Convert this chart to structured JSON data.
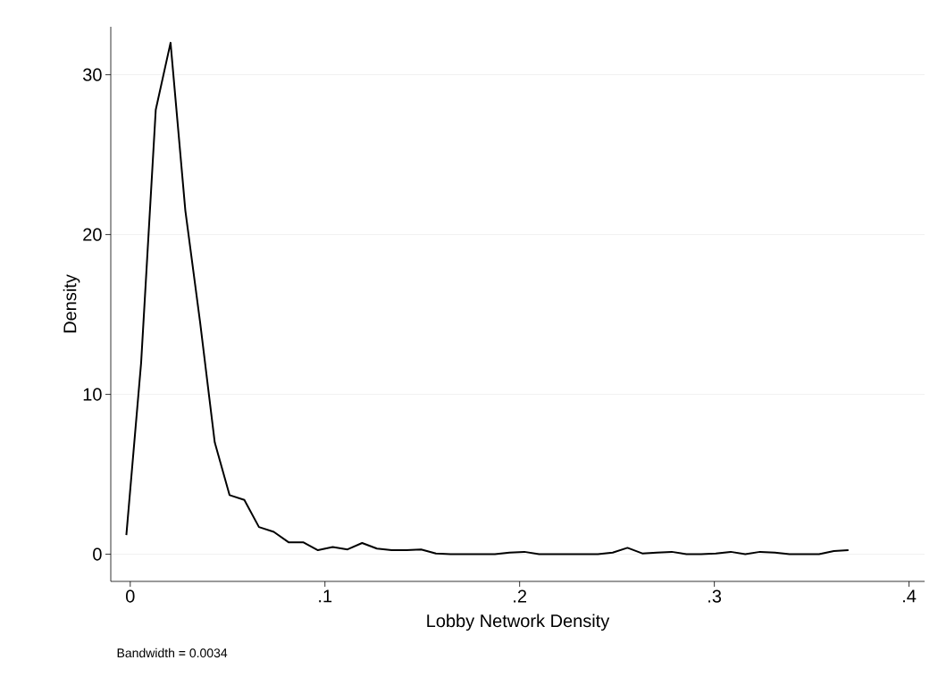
{
  "chart_data": {
    "type": "line",
    "xlabel": "Lobby Network Density",
    "ylabel": "Density",
    "annotations": [
      "Bandwidth = 0.0034"
    ],
    "series": [
      {
        "color": "#000000",
        "x": [
          -0.002,
          0.0056,
          0.0131,
          0.0207,
          0.0283,
          0.0359,
          0.0434,
          0.051,
          0.0586,
          0.0661,
          0.0737,
          0.0813,
          0.0888,
          0.0964,
          0.104,
          0.1116,
          0.1191,
          0.1267,
          0.1343,
          0.1418,
          0.1494,
          0.157,
          0.1645,
          0.1721,
          0.1797,
          0.1873,
          0.1948,
          0.2024,
          0.21,
          0.2175,
          0.2251,
          0.2327,
          0.2402,
          0.2478,
          0.2554,
          0.263,
          0.2705,
          0.2781,
          0.2857,
          0.2932,
          0.3008,
          0.3084,
          0.3159,
          0.3235,
          0.3311,
          0.3386,
          0.3462,
          0.3538,
          0.3614,
          0.3689
        ],
        "values": [
          1.2,
          12,
          27.8,
          32,
          21.5,
          14.5,
          7,
          3.7,
          3.4,
          1.7,
          1.4,
          0.75,
          0.75,
          0.25,
          0.45,
          0.3,
          0.7,
          0.35,
          0.25,
          0.25,
          0.3,
          0.05,
          0,
          0,
          0,
          0,
          0.1,
          0.15,
          0,
          0,
          0,
          0,
          0,
          0.1,
          0.4,
          0.05,
          0.1,
          0.15,
          0,
          0,
          0.05,
          0.15,
          0,
          0.15,
          0.1,
          0,
          0,
          0,
          0.2,
          0.25
        ]
      }
    ],
    "xlim": [
      -0.01,
      0.408
    ],
    "ylim": [
      -1.7,
      33
    ],
    "xticks": [
      {
        "value": 0,
        "label": "0"
      },
      {
        "value": 0.1,
        "label": ".1"
      },
      {
        "value": 0.2,
        "label": ".2"
      },
      {
        "value": 0.3,
        "label": ".3"
      },
      {
        "value": 0.4,
        "label": ".4"
      }
    ],
    "yticks": [
      0,
      10,
      20,
      30
    ],
    "grid": "y",
    "marker": "none",
    "line_style": "solid"
  }
}
